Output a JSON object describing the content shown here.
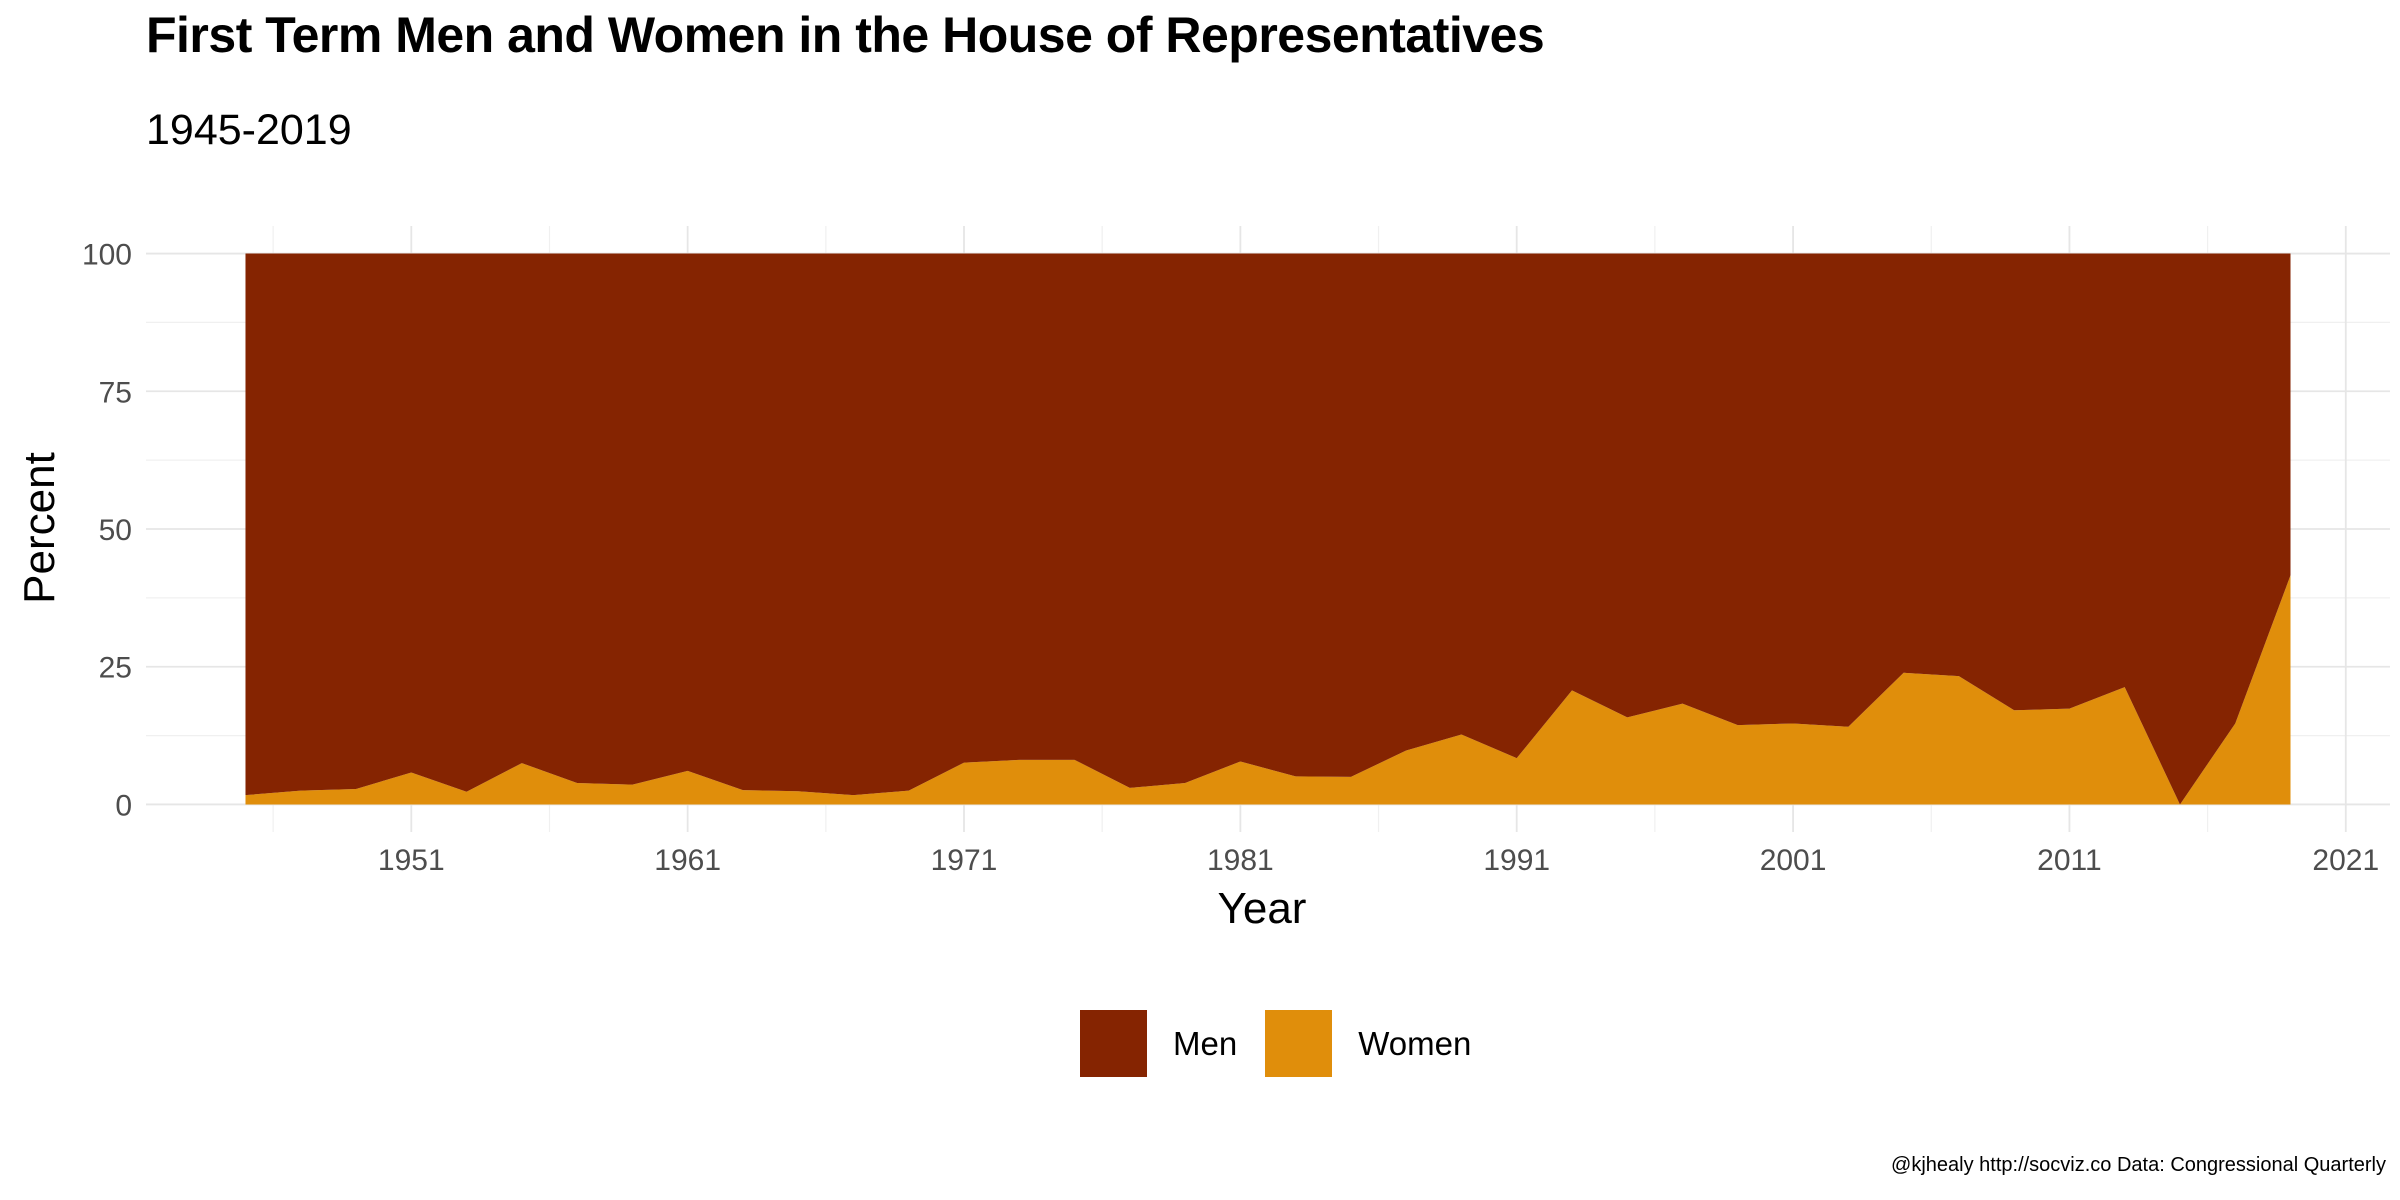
{
  "chart_data": {
    "type": "area",
    "stacked": true,
    "title": "First Term Men and Women in the House of Representatives",
    "subtitle": "1945-2019",
    "xlabel": "Year",
    "ylabel": "Percent",
    "caption": "@kjhealy http://socviz.co Data: Congressional Quarterly",
    "xlim": [
      1941.4,
      2022.6
    ],
    "ylim": [
      -5,
      105
    ],
    "x_ticks": [
      1951,
      1961,
      1971,
      1981,
      1991,
      2001,
      2011,
      2021
    ],
    "y_ticks": [
      0,
      25,
      50,
      75,
      100
    ],
    "grid": true,
    "legend_position": "bottom",
    "x": [
      1945,
      1947,
      1949,
      1951,
      1953,
      1955,
      1957,
      1959,
      1961,
      1963,
      1965,
      1967,
      1969,
      1971,
      1973,
      1975,
      1977,
      1979,
      1981,
      1983,
      1985,
      1987,
      1989,
      1991,
      1993,
      1995,
      1997,
      1999,
      2001,
      2003,
      2005,
      2007,
      2009,
      2011,
      2013,
      2015,
      2017,
      2019
    ],
    "series": [
      {
        "name": "Men",
        "color": "#852401",
        "values": [
          98.3,
          97.5,
          97.2,
          94.2,
          97.7,
          92.5,
          96.1,
          96.4,
          93.9,
          97.4,
          97.6,
          98.3,
          97.5,
          92.4,
          91.9,
          91.9,
          97.0,
          96.1,
          92.2,
          94.9,
          95.0,
          90.2,
          87.3,
          91.6,
          79.3,
          84.2,
          81.7,
          85.6,
          85.3,
          85.9,
          76.1,
          76.7,
          82.9,
          82.6,
          78.7,
          100.0,
          85.3,
          58.4
        ]
      },
      {
        "name": "Women",
        "color": "#e08e0b",
        "values": [
          1.7,
          2.5,
          2.8,
          5.8,
          2.3,
          7.5,
          3.9,
          3.6,
          6.1,
          2.6,
          2.4,
          1.7,
          2.5,
          7.6,
          8.1,
          8.1,
          3.0,
          3.9,
          7.8,
          5.1,
          5.0,
          9.8,
          12.7,
          8.4,
          20.7,
          15.8,
          18.3,
          14.4,
          14.7,
          14.1,
          23.9,
          23.3,
          17.1,
          17.4,
          21.3,
          0.0,
          14.7,
          41.6
        ]
      }
    ]
  }
}
